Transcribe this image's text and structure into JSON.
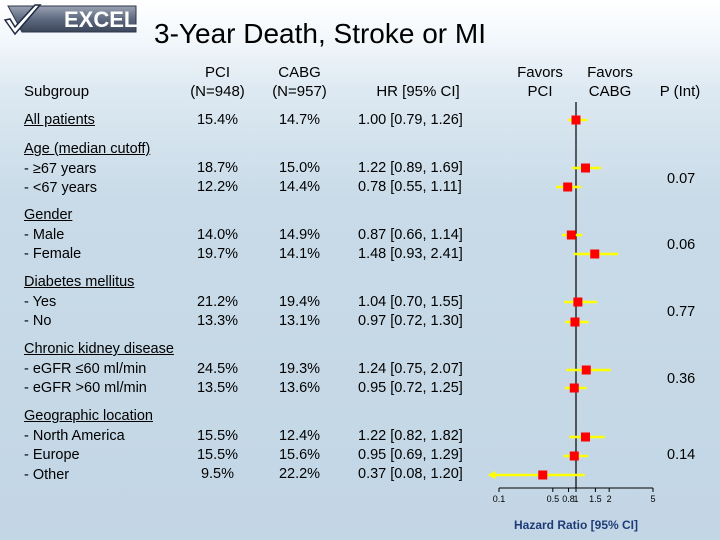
{
  "logo": {
    "text": "EXCEL",
    "icon": "checkmark-icon"
  },
  "title": "3-Year Death, Stroke or MI",
  "headers": {
    "subgroup": "Subgroup",
    "pci": "PCI\n(N=948)",
    "cabg": "CABG\n(N=957)",
    "hr": "HR [95% CI]",
    "favors_pci": "Favors\nPCI",
    "favors_cabg": "Favors\nCABG",
    "p_int": "P (Int)"
  },
  "groups": [
    {
      "name": "All patients",
      "rows": [
        {
          "label": "",
          "pci": "15.4%",
          "cabg": "14.7%",
          "hr_text": "1.00 [0.79, 1.26]"
        }
      ],
      "p_int": ""
    },
    {
      "name": "Age (median cutoff)",
      "rows": [
        {
          "label": "- ≥67 years",
          "pci": "18.7%",
          "cabg": "15.0%",
          "hr_text": "1.22 [0.89, 1.69]"
        },
        {
          "label": "- <67 years",
          "pci": "12.2%",
          "cabg": "14.4%",
          "hr_text": "0.78 [0.55, 1.11]"
        }
      ],
      "p_int": "0.07"
    },
    {
      "name": "Gender",
      "rows": [
        {
          "label": "- Male",
          "pci": "14.0%",
          "cabg": "14.9%",
          "hr_text": "0.87 [0.66, 1.14]"
        },
        {
          "label": "- Female",
          "pci": "19.7%",
          "cabg": "14.1%",
          "hr_text": "1.48 [0.93, 2.41]"
        }
      ],
      "p_int": "0.06"
    },
    {
      "name": "Diabetes mellitus",
      "rows": [
        {
          "label": "- Yes",
          "pci": "21.2%",
          "cabg": "19.4%",
          "hr_text": "1.04 [0.70, 1.55]"
        },
        {
          "label": "- No",
          "pci": "13.3%",
          "cabg": "13.1%",
          "hr_text": "0.97 [0.72, 1.30]"
        }
      ],
      "p_int": "0.77"
    },
    {
      "name": "Chronic kidney disease",
      "rows": [
        {
          "label": "- eGFR ≤60 ml/min",
          "pci": "24.5%",
          "cabg": "19.3%",
          "hr_text": "1.24 [0.75, 2.07]"
        },
        {
          "label": "- eGFR >60 ml/min",
          "pci": "13.5%",
          "cabg": "13.6%",
          "hr_text": "0.95 [0.72, 1.25]"
        }
      ],
      "p_int": "0.36"
    },
    {
      "name": "Geographic location",
      "rows": [
        {
          "label": "- North America",
          "pci": "15.5%",
          "cabg": "12.4%",
          "hr_text": "1.22 [0.82, 1.82]"
        },
        {
          "label": "- Europe",
          "pci": "15.5%",
          "cabg": "15.6%",
          "hr_text": "0.95 [0.69, 1.29]"
        },
        {
          "label": "- Other",
          "pci": "9.5%",
          "cabg": "22.2%",
          "hr_text": "0.37 [0.08, 1.20]"
        }
      ],
      "p_int": "0.14"
    }
  ],
  "chart_data": {
    "type": "forest",
    "scale": "log",
    "xlabel": "Hazard Ratio [95% CI]",
    "xlim": [
      0.1,
      5
    ],
    "xticks": [
      0.1,
      0.5,
      0.8,
      1,
      1.5,
      2,
      5
    ],
    "xtick_labels": [
      "0.1",
      "0.5",
      "0.8",
      "1",
      "1.5",
      "2",
      "5"
    ],
    "reference_line": 1,
    "marker_color": "#ff0000",
    "ci_color": "#ffff00",
    "axis_color": "#000000",
    "points": [
      {
        "label": "All patients",
        "hr": 1.0,
        "lo": 0.79,
        "hi": 1.26
      },
      {
        "label": "Age ≥67 years",
        "hr": 1.22,
        "lo": 0.89,
        "hi": 1.69
      },
      {
        "label": "Age <67 years",
        "hr": 0.78,
        "lo": 0.55,
        "hi": 1.11
      },
      {
        "label": "Male",
        "hr": 0.87,
        "lo": 0.66,
        "hi": 1.14
      },
      {
        "label": "Female",
        "hr": 1.48,
        "lo": 0.93,
        "hi": 2.41
      },
      {
        "label": "Diabetes Yes",
        "hr": 1.04,
        "lo": 0.7,
        "hi": 1.55
      },
      {
        "label": "Diabetes No",
        "hr": 0.97,
        "lo": 0.72,
        "hi": 1.3
      },
      {
        "label": "eGFR ≤60 ml/min",
        "hr": 1.24,
        "lo": 0.75,
        "hi": 2.07
      },
      {
        "label": "eGFR >60 ml/min",
        "hr": 0.95,
        "lo": 0.72,
        "hi": 1.25
      },
      {
        "label": "North America",
        "hr": 1.22,
        "lo": 0.82,
        "hi": 1.82
      },
      {
        "label": "Europe",
        "hr": 0.95,
        "lo": 0.69,
        "hi": 1.29
      },
      {
        "label": "Other",
        "hr": 0.37,
        "lo": 0.08,
        "hi": 1.2
      }
    ]
  }
}
